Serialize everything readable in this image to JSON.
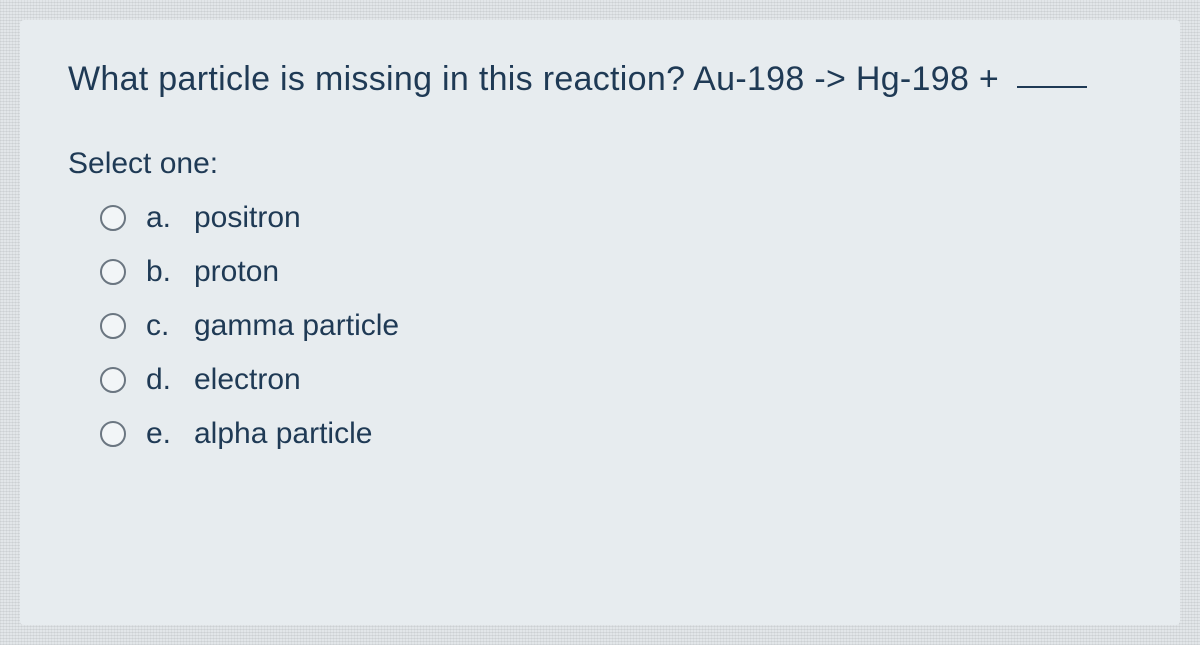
{
  "colors": {
    "page_bg": "#e2e6e9",
    "panel_bg": "#e7ecef",
    "text": "#1f3a55",
    "radio_border": "#6b7681",
    "radio_fill": "#f2f5f7"
  },
  "typography": {
    "question_fontsize": 34,
    "prompt_fontsize": 30,
    "option_fontsize": 30,
    "font_family": "Arial"
  },
  "question": {
    "text": "What particle is missing in this reaction? Au-198 -> Hg-198 +",
    "has_trailing_blank": true
  },
  "prompt": "Select one:",
  "options": [
    {
      "letter": "a.",
      "label": "positron",
      "selected": false
    },
    {
      "letter": "b.",
      "label": "proton",
      "selected": false
    },
    {
      "letter": "c.",
      "label": "gamma particle",
      "selected": false
    },
    {
      "letter": "d.",
      "label": "electron",
      "selected": false
    },
    {
      "letter": "e.",
      "label": "alpha particle",
      "selected": false
    }
  ]
}
